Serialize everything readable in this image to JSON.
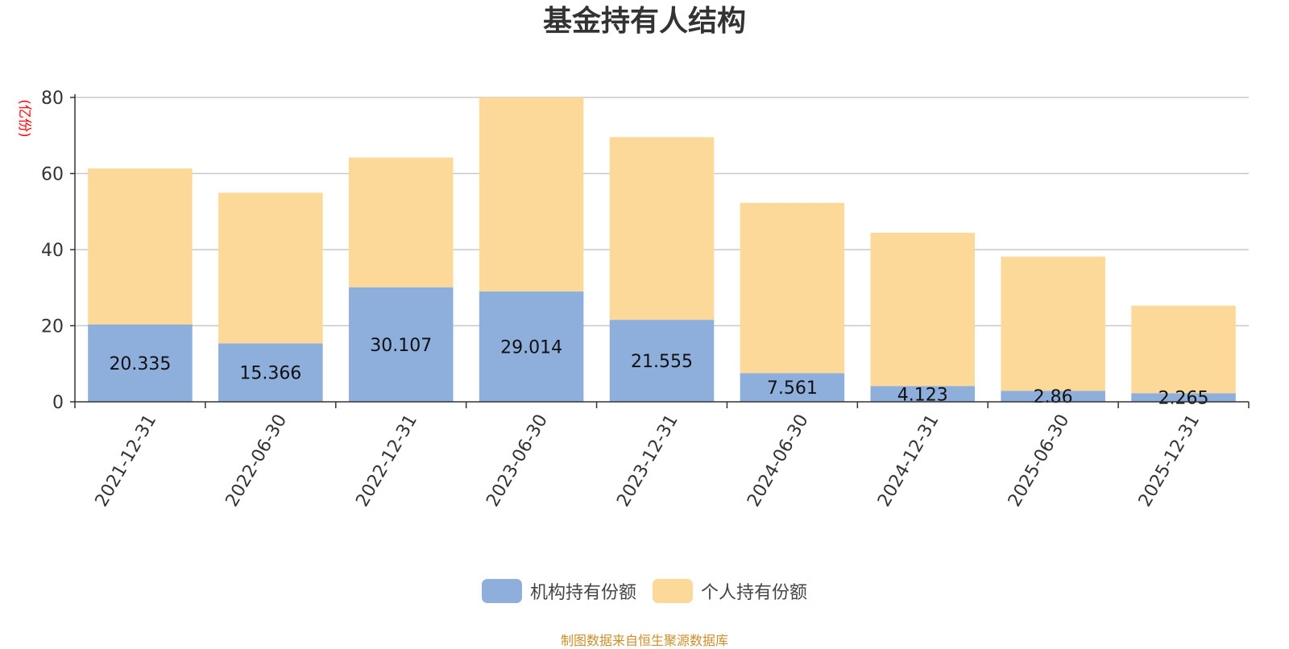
{
  "chart_data": {
    "type": "bar",
    "stacked": true,
    "title": "基金持有人结构",
    "ylabel": "(亿份)",
    "xlabel": "",
    "ylim": [
      0,
      80
    ],
    "yticks": [
      0,
      20,
      40,
      60,
      80
    ],
    "grid": true,
    "legend_position": "bottom",
    "categories": [
      "2021-12-31",
      "2022-06-30",
      "2022-12-31",
      "2023-06-30",
      "2023-12-31",
      "2024-06-30",
      "2024-12-31",
      "2025-06-30",
      "2025-12-31"
    ],
    "series": [
      {
        "name": "机构持有份额",
        "color": "#8eaedb",
        "values": [
          20.335,
          15.366,
          30.107,
          29.014,
          21.555,
          7.561,
          4.123,
          2.86,
          2.265
        ],
        "labels": [
          "20.335",
          "15.366",
          "30.107",
          "29.014",
          "21.555",
          "7.561",
          "4.123",
          "2.86",
          "2.265"
        ]
      },
      {
        "name": "个人持有份额",
        "color": "#fdd999",
        "values": [
          41.0,
          39.6,
          34.1,
          51.0,
          48.0,
          44.7,
          40.3,
          35.3,
          23.0
        ]
      }
    ]
  },
  "footer": {
    "source": "制图数据来自恒生聚源数据库",
    "source_color": "#c8902d"
  }
}
